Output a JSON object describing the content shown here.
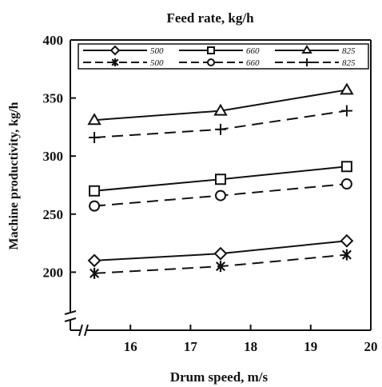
{
  "chart_data": {
    "type": "line",
    "title": "Feed rate, kg/h",
    "xlabel": "Drum speed, m/s",
    "ylabel": "Machine productivity, kg/h",
    "xlim": [
      15,
      20
    ],
    "ylim": [
      150,
      400
    ],
    "xticks": [
      16,
      17,
      18,
      19,
      20
    ],
    "yticks": [
      200,
      250,
      300,
      350,
      400
    ],
    "x": [
      15.4,
      17.5,
      19.6
    ],
    "axis_break": true,
    "grid": false,
    "legend_position": "top",
    "series": [
      {
        "name": "500",
        "marker": "diamond",
        "dash": "solid",
        "values": [
          210,
          216,
          227
        ]
      },
      {
        "name": "660",
        "marker": "square",
        "dash": "solid",
        "values": [
          270,
          280,
          291
        ]
      },
      {
        "name": "825",
        "marker": "triangle",
        "dash": "solid",
        "values": [
          331,
          339,
          357
        ]
      },
      {
        "name": "500",
        "marker": "asterisk",
        "dash": "dashed",
        "values": [
          199,
          205,
          215
        ]
      },
      {
        "name": "660",
        "marker": "circle",
        "dash": "dashed",
        "values": [
          257,
          266,
          276
        ]
      },
      {
        "name": "825",
        "marker": "plus",
        "dash": "dashed",
        "values": [
          316,
          323,
          339
        ]
      }
    ]
  }
}
